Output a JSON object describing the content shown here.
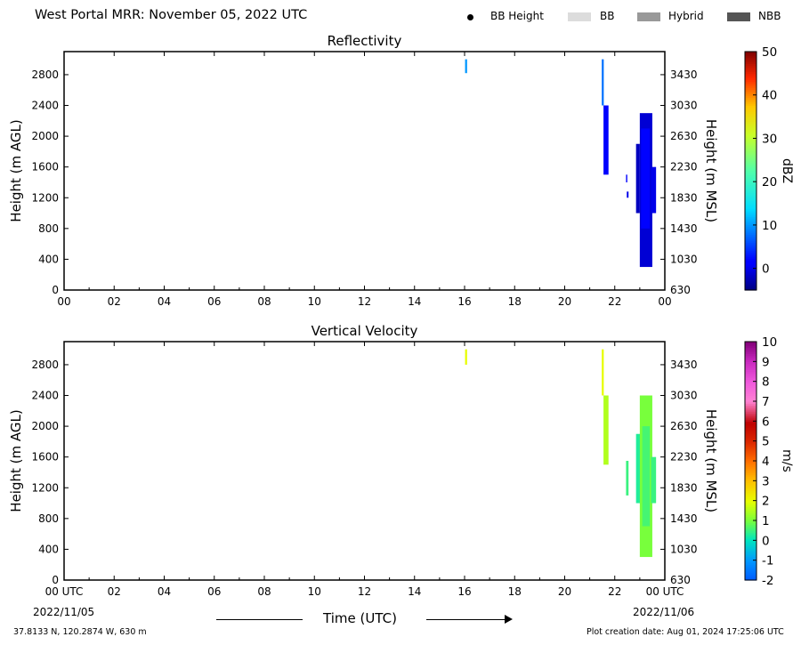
{
  "header": {
    "title": "West Portal MRR:  November 05, 2022 UTC",
    "legend": [
      {
        "label": "BB Height",
        "marker": "dot",
        "color": "#000000"
      },
      {
        "label": "BB",
        "marker": "box",
        "color": "#dcdcdc"
      },
      {
        "label": "Hybrid",
        "marker": "box",
        "color": "#999999"
      },
      {
        "label": "NBB",
        "marker": "box",
        "color": "#555555"
      }
    ]
  },
  "chart_data": [
    {
      "type": "heatmap",
      "title": "Reflectivity",
      "xlabel": "",
      "ylabel": "Height (m AGL)",
      "y2label": "Height (m MSL)",
      "xlim": [
        0,
        24
      ],
      "ylim": [
        0,
        3100
      ],
      "x_ticks": [
        "00",
        "02",
        "04",
        "06",
        "08",
        "10",
        "12",
        "14",
        "16",
        "18",
        "20",
        "22",
        "00"
      ],
      "y_ticks": [
        0,
        400,
        800,
        1200,
        1600,
        2000,
        2400,
        2800
      ],
      "y2_ticks": [
        630,
        1030,
        1430,
        1830,
        2230,
        2630,
        3030,
        3430
      ],
      "colorbar": {
        "label": "dBZ",
        "min": -5,
        "max": 50,
        "ticks": [
          0,
          10,
          20,
          30,
          40,
          50
        ]
      },
      "echoes": [
        {
          "t0": 16.02,
          "t1": 16.1,
          "y0": 2820,
          "y1": 3000,
          "value": 10
        },
        {
          "t0": 21.48,
          "t1": 21.56,
          "y0": 2400,
          "y1": 3000,
          "value": 8
        },
        {
          "t0": 21.55,
          "t1": 21.75,
          "y0": 1500,
          "y1": 2400,
          "value": 1
        },
        {
          "t0": 22.45,
          "t1": 22.5,
          "y0": 1400,
          "y1": 1500,
          "value": 1
        },
        {
          "t0": 22.48,
          "t1": 22.55,
          "y0": 1200,
          "y1": 1280,
          "value": 0
        },
        {
          "t0": 22.85,
          "t1": 23.0,
          "y0": 1000,
          "y1": 1900,
          "value": -2
        },
        {
          "t0": 23.0,
          "t1": 23.5,
          "y0": 300,
          "y1": 2300,
          "value": -1
        },
        {
          "t0": 23.05,
          "t1": 23.4,
          "y0": 800,
          "y1": 2100,
          "value": 2
        },
        {
          "t0": 23.45,
          "t1": 23.65,
          "y0": 1000,
          "y1": 1600,
          "value": 0
        }
      ]
    },
    {
      "type": "heatmap",
      "title": "Vertical Velocity",
      "xlabel": "Time (UTC)",
      "ylabel": "Height (m AGL)",
      "y2label": "Height (m MSL)",
      "xlim": [
        0,
        24
      ],
      "ylim": [
        0,
        3100
      ],
      "x_ticks": [
        "00 UTC",
        "02",
        "04",
        "06",
        "08",
        "10",
        "12",
        "14",
        "16",
        "18",
        "20",
        "22",
        "00 UTC"
      ],
      "x_dates": [
        "2022/11/05",
        "2022/11/06"
      ],
      "y_ticks": [
        0,
        400,
        800,
        1200,
        1600,
        2000,
        2400,
        2800
      ],
      "y2_ticks": [
        630,
        1030,
        1430,
        1830,
        2230,
        2630,
        3030,
        3430
      ],
      "colorbar": {
        "label": "m/s",
        "min": -2,
        "max": 10,
        "ticks": [
          -2,
          -1,
          0,
          1,
          2,
          3,
          4,
          5,
          6,
          7,
          8,
          9,
          10
        ]
      },
      "echoes": [
        {
          "t0": 16.02,
          "t1": 16.1,
          "y0": 2800,
          "y1": 3000,
          "value": 2
        },
        {
          "t0": 21.48,
          "t1": 21.56,
          "y0": 2400,
          "y1": 3000,
          "value": 2
        },
        {
          "t0": 21.55,
          "t1": 21.75,
          "y0": 1500,
          "y1": 2400,
          "value": 1.5
        },
        {
          "t0": 22.45,
          "t1": 22.55,
          "y0": 1100,
          "y1": 1550,
          "value": 0.5
        },
        {
          "t0": 22.85,
          "t1": 23.05,
          "y0": 1000,
          "y1": 1900,
          "value": 0.3
        },
        {
          "t0": 23.0,
          "t1": 23.5,
          "y0": 300,
          "y1": 2400,
          "value": 1
        },
        {
          "t0": 23.1,
          "t1": 23.4,
          "y0": 700,
          "y1": 2000,
          "value": 0.6
        },
        {
          "t0": 23.45,
          "t1": 23.65,
          "y0": 1000,
          "y1": 1600,
          "value": 0.5
        }
      ]
    }
  ],
  "footer": {
    "location": "37.8133 N, 120.2874 W, 630 m",
    "created": "Plot creation date: Aug 01, 2024 17:25:06 UTC"
  }
}
